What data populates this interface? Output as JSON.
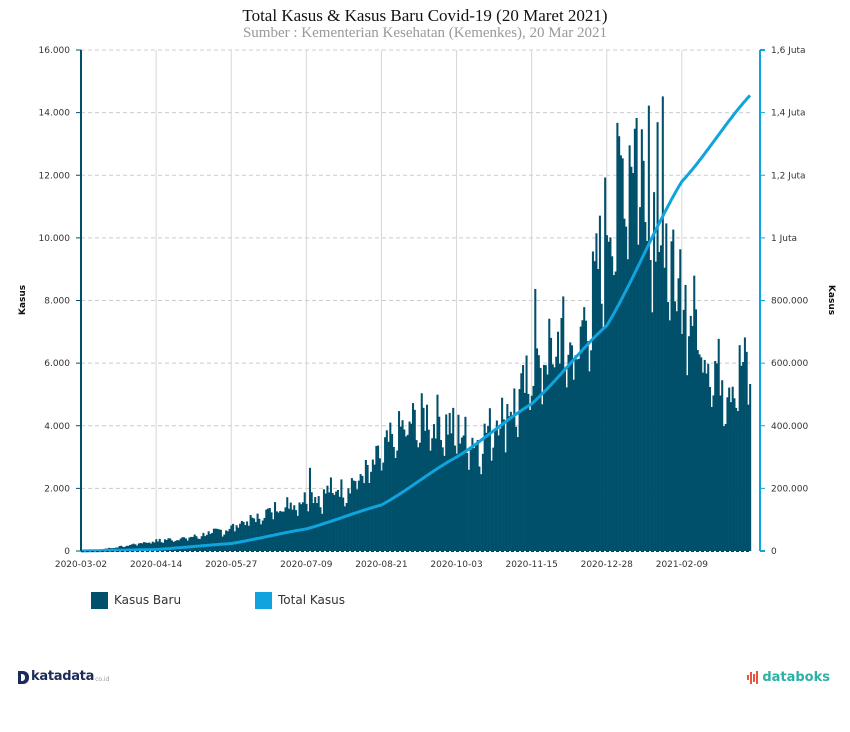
{
  "header": {
    "title": "Total Kasus & Kasus Baru Covid-19 (20 Maret 2021)",
    "subtitle": "Sumber : Kementerian Kesehatan (Kemenkes), 20 Mar 2021"
  },
  "colors": {
    "bars": "#00506b",
    "line": "#10a3dd",
    "grid": "#cccccc",
    "left_axis": "#00506b",
    "right_axis": "#10a3dd"
  },
  "legend": [
    {
      "label": "Kasus Baru",
      "color": "#00506b"
    },
    {
      "label": "Total Kasus",
      "color": "#10a3dd"
    }
  ],
  "logos": {
    "left_name": "katadata",
    "left_tld": "co.id",
    "right_name": "databoks"
  },
  "chart_data": {
    "type": "bar+line",
    "title": "Total Kasus & Kasus Baru Covid-19 (20 Maret 2021)",
    "subtitle": "Sumber : Kementerian Kesehatan (Kemenkes), 20 Mar 2021",
    "x_start": "2020-03-02",
    "x_end": "2021-03-20",
    "xtick_labels": [
      "2020-03-02",
      "2020-04-14",
      "2020-05-27",
      "2020-07-09",
      "2020-08-21",
      "2020-10-03",
      "2020-11-15",
      "2020-12-28",
      "2021-02-09"
    ],
    "xtick_day_offsets": [
      0,
      43,
      86,
      129,
      172,
      215,
      258,
      301,
      344
    ],
    "y_left": {
      "label": "Kasus",
      "range": [
        0,
        16000
      ],
      "ticks": [
        0,
        2000,
        4000,
        6000,
        8000,
        10000,
        12000,
        14000,
        16000
      ],
      "tick_labels": [
        "0",
        "2.000",
        "4.000",
        "6.000",
        "8.000",
        "10.000",
        "12.000",
        "14.000",
        "16.000"
      ]
    },
    "y_right": {
      "label": "Kasus",
      "range": [
        0,
        1600000
      ],
      "ticks": [
        0,
        200000,
        400000,
        600000,
        800000,
        1000000,
        1200000,
        1400000,
        1600000
      ],
      "tick_labels": [
        "0",
        "200.000",
        "400.000",
        "600.000",
        "800.000",
        "1 Juta",
        "1,2 Juta",
        "1,4 Juta",
        "1,6 Juta"
      ]
    },
    "grid": "horizontal dashed, vertical at x ticks",
    "legend_position": "bottom-left",
    "series": [
      {
        "name": "Kasus Baru",
        "type": "bar",
        "axis": "left",
        "weekly_anchor_values": [
          2,
          20,
          60,
          110,
          150,
          220,
          280,
          320,
          360,
          400,
          420,
          480,
          560,
          650,
          700,
          900,
          1000,
          1100,
          1300,
          1500,
          1550,
          1650,
          1800,
          1750,
          2100,
          2000,
          2300,
          2500,
          2800,
          3300,
          3700,
          4100,
          4200,
          4400,
          4300,
          4100,
          3900,
          3700,
          3500,
          4000,
          4500,
          4700,
          5000,
          5800,
          6200,
          6600,
          7000,
          6300,
          7500,
          8500,
          10500,
          11500,
          12800,
          13500,
          12000,
          10500,
          9000,
          8500,
          8000,
          7200,
          6200,
          5800,
          5500,
          6000
        ],
        "notes": "Daily new cases, approximate; peak ~14.500 around 2021-01-30"
      },
      {
        "name": "Total Kasus",
        "type": "line",
        "axis": "right",
        "anchors": [
          [
            "2020-03-02",
            2
          ],
          [
            "2020-04-14",
            4800
          ],
          [
            "2020-05-27",
            24000
          ],
          [
            "2020-07-09",
            70700
          ],
          [
            "2020-08-21",
            147000
          ],
          [
            "2020-10-03",
            300000
          ],
          [
            "2020-11-15",
            470000
          ],
          [
            "2020-12-28",
            720000
          ],
          [
            "2021-02-09",
            1180000
          ],
          [
            "2021-03-20",
            1455000
          ]
        ]
      }
    ]
  }
}
